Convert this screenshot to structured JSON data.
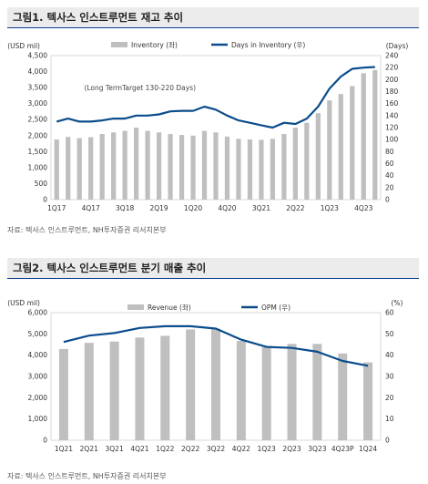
{
  "figure1": {
    "title": "그림1. 텍사스 인스트루먼트 재고 추이",
    "source": "자료: 텍사스 인스트루먼트, NH투자증권 리서치본부"
  },
  "figure2": {
    "title": "그림2. 텍사스 인스트루먼트 분기 매출 추이",
    "source": "자료: 텍사스 인스트루먼트, NH투자증권 리서치본부"
  },
  "colors": {
    "bar": "#bfbfbf",
    "line": "#0b4c8c",
    "title_line": "#0a3d8f",
    "title_bg": "#ebebeb"
  },
  "chart_data": [
    {
      "type": "bar",
      "y_unit_left": "(USD mil)",
      "y_unit_right": "(Days)",
      "ylim": [
        0,
        4500
      ],
      "y_ticks": [
        "0",
        "500",
        "1,000",
        "1,500",
        "2,000",
        "2,500",
        "3,000",
        "3,500",
        "4,000",
        "4,500"
      ],
      "y2lim": [
        0,
        240
      ],
      "y2_ticks": [
        "0",
        "20",
        "40",
        "60",
        "80",
        "100",
        "120",
        "140",
        "160",
        "180",
        "200",
        "220",
        "240"
      ],
      "x_tick_labels": [
        "1Q17",
        "4Q17",
        "3Q18",
        "2Q19",
        "1Q20",
        "4Q20",
        "3Q21",
        "2Q22",
        "1Q23",
        "4Q23"
      ],
      "annotation": "(Long TermTarget 130-220 Days)",
      "categories": [
        "1Q17",
        "2Q17",
        "3Q17",
        "4Q17",
        "1Q18",
        "2Q18",
        "3Q18",
        "4Q18",
        "1Q19",
        "2Q19",
        "3Q19",
        "4Q19",
        "1Q20",
        "2Q20",
        "3Q20",
        "4Q20",
        "1Q21",
        "2Q21",
        "3Q21",
        "4Q21",
        "1Q22",
        "2Q22",
        "3Q22",
        "4Q22",
        "1Q23",
        "2Q23",
        "3Q23",
        "4Q23",
        "1Q24"
      ],
      "series": [
        {
          "name": "Inventory (좌)",
          "type": "bar",
          "axis": "left",
          "values": [
            1880,
            1960,
            1920,
            1950,
            2050,
            2100,
            2150,
            2250,
            2150,
            2100,
            2050,
            2020,
            2000,
            2150,
            2100,
            1970,
            1900,
            1880,
            1870,
            1900,
            2050,
            2250,
            2400,
            2700,
            3100,
            3300,
            3550,
            3950,
            4050
          ]
        },
        {
          "name": "Days in Inventory (우)",
          "type": "line",
          "axis": "right",
          "values": [
            130,
            135,
            130,
            130,
            132,
            135,
            135,
            140,
            140,
            142,
            147,
            148,
            148,
            155,
            150,
            140,
            132,
            128,
            124,
            120,
            128,
            126,
            135,
            155,
            185,
            205,
            218,
            220,
            221
          ]
        }
      ]
    },
    {
      "type": "bar",
      "y_unit_left": "(USD mil)",
      "y_unit_right": "(%)",
      "ylim": [
        0,
        6000
      ],
      "y_ticks": [
        "0",
        "1,000",
        "2,000",
        "3,000",
        "4,000",
        "5,000",
        "6,000"
      ],
      "y2lim": [
        0,
        60
      ],
      "y2_ticks": [
        "0",
        "10",
        "20",
        "30",
        "40",
        "50",
        "60"
      ],
      "categories": [
        "1Q21",
        "2Q21",
        "3Q21",
        "4Q21",
        "1Q22",
        "2Q22",
        "3Q22",
        "4Q22",
        "1Q23",
        "2Q23",
        "3Q23",
        "4Q23P",
        "1Q24"
      ],
      "series": [
        {
          "name": "Revenue (좌)",
          "type": "bar",
          "axis": "left",
          "values": [
            4290,
            4580,
            4640,
            4830,
            4910,
            5210,
            5240,
            4670,
            4380,
            4530,
            4530,
            4080,
            3660
          ]
        },
        {
          "name": "OPM (우)",
          "type": "line",
          "axis": "right",
          "values": [
            46.2,
            49.2,
            50.4,
            52.8,
            53.6,
            53.6,
            52.5,
            47.3,
            43.9,
            43.4,
            41.6,
            37.3,
            35.0
          ]
        }
      ]
    }
  ]
}
